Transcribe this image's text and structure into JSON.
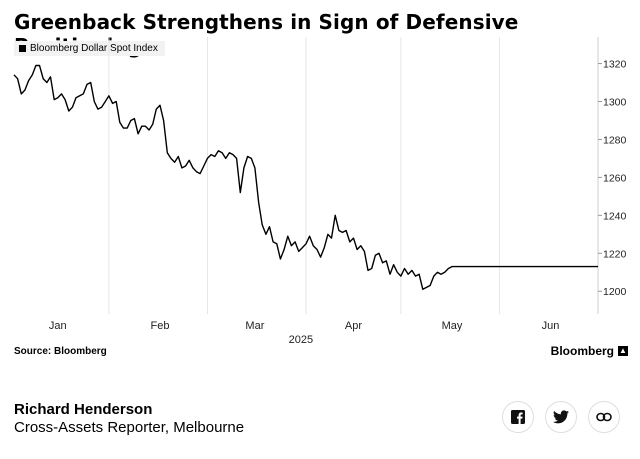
{
  "title": "Greenback Strengthens in Sign of Defensive Positioning",
  "source": "Source: Bloomberg",
  "brand": "Bloomberg",
  "author": {
    "name": "Richard Henderson",
    "role": "Cross-Assets Reporter, Melbourne"
  },
  "share": [
    "facebook-icon",
    "twitter-icon",
    "link-icon"
  ],
  "chart_data": {
    "type": "line",
    "xlabel": "2025",
    "ylabel": "",
    "legend_position": "top-left",
    "grid": "vertical",
    "ylim": [
      1188,
      1334
    ],
    "yticks": [
      1200,
      1220,
      1240,
      1260,
      1280,
      1300,
      1320
    ],
    "xlim": [
      0,
      160
    ],
    "month_ticks": [
      {
        "label": "Jan",
        "x": 12
      },
      {
        "label": "Feb",
        "x": 40
      },
      {
        "label": "Mar",
        "x": 66
      },
      {
        "label": "Apr",
        "x": 93
      },
      {
        "label": "May",
        "x": 120
      },
      {
        "label": "Jun",
        "x": 147
      }
    ],
    "gridlines_x": [
      26,
      53,
      80,
      106,
      133,
      160
    ],
    "series": [
      {
        "name": "Bloomberg Dollar Spot Index",
        "color": "#000000",
        "x": [
          0,
          1,
          2,
          3,
          4,
          5,
          6,
          7,
          8,
          9,
          10,
          11,
          12,
          13,
          14,
          15,
          16,
          17,
          18,
          19,
          20,
          21,
          22,
          23,
          24,
          25,
          26,
          27,
          28,
          29,
          30,
          31,
          32,
          33,
          34,
          35,
          36,
          37,
          38,
          39,
          40,
          41,
          42,
          43,
          44,
          45,
          46,
          47,
          48,
          49,
          50,
          51,
          52,
          53,
          54,
          55,
          56,
          57,
          58,
          59,
          60,
          61,
          62,
          63,
          64,
          65,
          66,
          67,
          68,
          69,
          70,
          71,
          72,
          73,
          74,
          75,
          76,
          77,
          78,
          79,
          80,
          81,
          82,
          83,
          84,
          85,
          86,
          87,
          88,
          89,
          90,
          91,
          92,
          93,
          94,
          95,
          96,
          97,
          98,
          99,
          100,
          101,
          102,
          103,
          104,
          105,
          106,
          107,
          108,
          109,
          110,
          111,
          112,
          113,
          114,
          115,
          116,
          117,
          118,
          119,
          120,
          121,
          122,
          123,
          124,
          125,
          126,
          127,
          128,
          129,
          130,
          131,
          132,
          133,
          134,
          135,
          136,
          137,
          138,
          139,
          140,
          141,
          142,
          143,
          144,
          145,
          146,
          147,
          148,
          149,
          150,
          151,
          152,
          153,
          154,
          155,
          156,
          157,
          158,
          159,
          160
        ],
        "values": [
          1314,
          1312,
          1304,
          1306,
          1311,
          1314,
          1319,
          1319,
          1312,
          1310,
          1313,
          1301,
          1302,
          1304,
          1301,
          1295,
          1297,
          1302,
          1303,
          1304,
          1309,
          1310,
          1300,
          1296,
          1297,
          1300,
          1303,
          1299,
          1300,
          1289,
          1286,
          1286,
          1290,
          1291,
          1283,
          1287,
          1287,
          1285,
          1288,
          1296,
          1298,
          1290,
          1273,
          1270,
          1268,
          1271,
          1265,
          1266,
          1269,
          1265,
          1263,
          1262,
          1266,
          1270,
          1272,
          1271,
          1274,
          1273,
          1270,
          1273,
          1272,
          1270,
          1252,
          1265,
          1271,
          1270,
          1265,
          1247,
          1235,
          1230,
          1234,
          1226,
          1225,
          1217,
          1222,
          1229,
          1224,
          1226,
          1221,
          1223,
          1225,
          1229,
          1224,
          1222,
          1218,
          1223,
          1230,
          1228,
          1240,
          1232,
          1231,
          1232,
          1226,
          1228,
          1222,
          1224,
          1221,
          1211,
          1212,
          1219,
          1220,
          1215,
          1216,
          1209,
          1214,
          1210,
          1208,
          1212,
          1209,
          1211,
          1208,
          1209,
          1201,
          1202,
          1203,
          1208,
          1210,
          1209,
          1210,
          1212,
          1213,
          1213,
          1213,
          1213,
          1213,
          1213,
          1213,
          1213,
          1213,
          1213,
          1213,
          1213,
          1213,
          1213,
          1213,
          1213,
          1213,
          1213,
          1213,
          1213,
          1213,
          1213,
          1213,
          1213,
          1213,
          1213,
          1213,
          1213,
          1213,
          1213,
          1213,
          1213,
          1213,
          1213,
          1213,
          1213,
          1213,
          1213,
          1213,
          1213,
          1213
        ]
      }
    ]
  }
}
